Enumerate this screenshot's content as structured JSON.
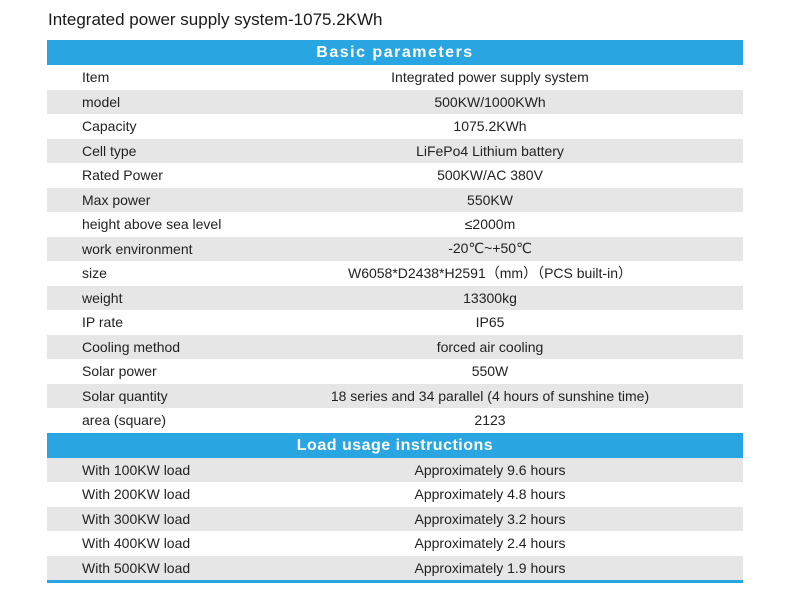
{
  "title": "Integrated power supply system-1075.2KWh",
  "basic": {
    "header": "Basic parameters",
    "rows": [
      {
        "label": "Item",
        "value": "Integrated power supply system"
      },
      {
        "label": "model",
        "value": "500KW/1000KWh"
      },
      {
        "label": "Capacity",
        "value": "1075.2KWh"
      },
      {
        "label": "Cell type",
        "value": "LiFePo4 Lithium battery"
      },
      {
        "label": "Rated Power",
        "value": "500KW/AC 380V"
      },
      {
        "label": "Max power",
        "value": "550KW"
      },
      {
        "label": "height above sea level",
        "value": "≤2000m"
      },
      {
        "label": "work environment",
        "value": "-20℃~+50℃"
      },
      {
        "label": "size",
        "value": "W6058*D2438*H2591（mm）（PCS built-in）"
      },
      {
        "label": "weight",
        "value": "13300kg"
      },
      {
        "label": "IP rate",
        "value": "IP65"
      },
      {
        "label": "Cooling method",
        "value": "forced air cooling"
      },
      {
        "label": "Solar power",
        "value": "550W"
      },
      {
        "label": "Solar quantity",
        "value": "18 series and 34 parallel (4 hours of sunshine time)"
      },
      {
        "label": "area (square)",
        "value": "2123"
      }
    ]
  },
  "load": {
    "header": "Load usage instructions",
    "rows": [
      {
        "label": "With 100KW load",
        "value": "Approximately 9.6 hours"
      },
      {
        "label": "With 200KW load",
        "value": "Approximately 4.8 hours"
      },
      {
        "label": "With 300KW load",
        "value": "Approximately 3.2 hours"
      },
      {
        "label": "With 400KW load",
        "value": "Approximately 2.4 hours"
      },
      {
        "label": "With 500KW load",
        "value": "Approximately 1.9 hours"
      }
    ]
  },
  "colors": {
    "header_bg": "#29a6e1",
    "header_text": "#ffffff",
    "stripe": "#e6e6e6"
  }
}
